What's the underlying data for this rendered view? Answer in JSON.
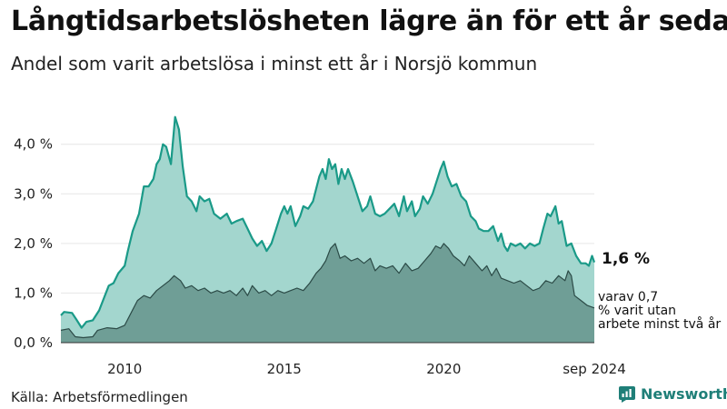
{
  "title": "Långtidsarbetslösheten lägre än för ett år sedan",
  "subtitle": "Andel som varit arbetslösa i minst ett år i Norsjö kommun",
  "source": "Källa: Arbetsförmedlingen",
  "brand": "Newsworthy",
  "colors": {
    "upper_fill": "#a3d6ce",
    "upper_line": "#1a9a88",
    "lower_fill": "#6f9e96",
    "lower_line": "#2b4a46",
    "brand": "#1f7f78"
  },
  "chart_data": {
    "type": "area",
    "ylim": [
      0,
      4.6
    ],
    "yticks": [
      "0,0 %",
      "1,0 %",
      "2,0 %",
      "3,0 %",
      "4,0 %"
    ],
    "xticks": [
      "2010",
      "2015",
      "2020",
      "sep 2024"
    ],
    "grid": true,
    "series": [
      {
        "end_label": "1,6 %",
        "points": [
          [
            2008.0,
            0.55
          ],
          [
            2008.1,
            0.62
          ],
          [
            2008.35,
            0.6
          ],
          [
            2008.5,
            0.45
          ],
          [
            2008.65,
            0.3
          ],
          [
            2008.8,
            0.42
          ],
          [
            2009.0,
            0.45
          ],
          [
            2009.2,
            0.65
          ],
          [
            2009.35,
            0.9
          ],
          [
            2009.5,
            1.15
          ],
          [
            2009.65,
            1.2
          ],
          [
            2009.8,
            1.4
          ],
          [
            2010.0,
            1.55
          ],
          [
            2010.1,
            1.85
          ],
          [
            2010.25,
            2.25
          ],
          [
            2010.45,
            2.6
          ],
          [
            2010.6,
            3.15
          ],
          [
            2010.75,
            3.15
          ],
          [
            2010.9,
            3.3
          ],
          [
            2011.0,
            3.6
          ],
          [
            2011.1,
            3.7
          ],
          [
            2011.2,
            4.0
          ],
          [
            2011.3,
            3.95
          ],
          [
            2011.45,
            3.6
          ],
          [
            2011.58,
            4.55
          ],
          [
            2011.7,
            4.3
          ],
          [
            2011.82,
            3.55
          ],
          [
            2011.95,
            2.95
          ],
          [
            2012.1,
            2.85
          ],
          [
            2012.25,
            2.65
          ],
          [
            2012.35,
            2.95
          ],
          [
            2012.5,
            2.85
          ],
          [
            2012.65,
            2.9
          ],
          [
            2012.8,
            2.6
          ],
          [
            2013.0,
            2.5
          ],
          [
            2013.2,
            2.6
          ],
          [
            2013.35,
            2.4
          ],
          [
            2013.5,
            2.45
          ],
          [
            2013.7,
            2.5
          ],
          [
            2013.85,
            2.3
          ],
          [
            2014.0,
            2.1
          ],
          [
            2014.15,
            1.95
          ],
          [
            2014.3,
            2.05
          ],
          [
            2014.45,
            1.85
          ],
          [
            2014.6,
            2.0
          ],
          [
            2014.75,
            2.3
          ],
          [
            2014.9,
            2.6
          ],
          [
            2015.0,
            2.75
          ],
          [
            2015.1,
            2.6
          ],
          [
            2015.2,
            2.75
          ],
          [
            2015.35,
            2.35
          ],
          [
            2015.5,
            2.55
          ],
          [
            2015.6,
            2.75
          ],
          [
            2015.75,
            2.7
          ],
          [
            2015.9,
            2.85
          ],
          [
            2016.0,
            3.1
          ],
          [
            2016.1,
            3.35
          ],
          [
            2016.2,
            3.5
          ],
          [
            2016.3,
            3.3
          ],
          [
            2016.4,
            3.7
          ],
          [
            2016.5,
            3.5
          ],
          [
            2016.6,
            3.6
          ],
          [
            2016.7,
            3.2
          ],
          [
            2016.8,
            3.5
          ],
          [
            2016.9,
            3.3
          ],
          [
            2017.0,
            3.5
          ],
          [
            2017.15,
            3.25
          ],
          [
            2017.3,
            2.95
          ],
          [
            2017.45,
            2.65
          ],
          [
            2017.6,
            2.75
          ],
          [
            2017.7,
            2.95
          ],
          [
            2017.85,
            2.6
          ],
          [
            2018.0,
            2.55
          ],
          [
            2018.15,
            2.6
          ],
          [
            2018.3,
            2.7
          ],
          [
            2018.45,
            2.8
          ],
          [
            2018.6,
            2.55
          ],
          [
            2018.75,
            2.95
          ],
          [
            2018.85,
            2.65
          ],
          [
            2019.0,
            2.85
          ],
          [
            2019.1,
            2.55
          ],
          [
            2019.25,
            2.7
          ],
          [
            2019.35,
            2.95
          ],
          [
            2019.5,
            2.8
          ],
          [
            2019.65,
            3.0
          ],
          [
            2019.75,
            3.2
          ],
          [
            2019.9,
            3.5
          ],
          [
            2020.0,
            3.65
          ],
          [
            2020.12,
            3.35
          ],
          [
            2020.25,
            3.15
          ],
          [
            2020.4,
            3.2
          ],
          [
            2020.55,
            2.95
          ],
          [
            2020.7,
            2.85
          ],
          [
            2020.85,
            2.55
          ],
          [
            2021.0,
            2.45
          ],
          [
            2021.1,
            2.3
          ],
          [
            2021.25,
            2.25
          ],
          [
            2021.4,
            2.25
          ],
          [
            2021.55,
            2.35
          ],
          [
            2021.7,
            2.05
          ],
          [
            2021.8,
            2.2
          ],
          [
            2021.9,
            1.95
          ],
          [
            2022.0,
            1.85
          ],
          [
            2022.1,
            2.0
          ],
          [
            2022.25,
            1.95
          ],
          [
            2022.4,
            2.0
          ],
          [
            2022.55,
            1.9
          ],
          [
            2022.7,
            2.0
          ],
          [
            2022.85,
            1.95
          ],
          [
            2023.0,
            2.0
          ],
          [
            2023.12,
            2.3
          ],
          [
            2023.25,
            2.6
          ],
          [
            2023.35,
            2.55
          ],
          [
            2023.5,
            2.75
          ],
          [
            2023.6,
            2.4
          ],
          [
            2023.7,
            2.45
          ],
          [
            2023.85,
            1.95
          ],
          [
            2024.0,
            2.0
          ],
          [
            2024.15,
            1.75
          ],
          [
            2024.3,
            1.6
          ],
          [
            2024.45,
            1.6
          ],
          [
            2024.55,
            1.55
          ],
          [
            2024.65,
            1.75
          ],
          [
            2024.72,
            1.62
          ]
        ]
      },
      {
        "end_label": "varav 0,7 % varit utan arbete minst två år",
        "points": [
          [
            2008.0,
            0.25
          ],
          [
            2008.25,
            0.28
          ],
          [
            2008.45,
            0.12
          ],
          [
            2008.7,
            0.1
          ],
          [
            2009.0,
            0.12
          ],
          [
            2009.15,
            0.25
          ],
          [
            2009.45,
            0.3
          ],
          [
            2009.75,
            0.28
          ],
          [
            2010.0,
            0.35
          ],
          [
            2010.2,
            0.6
          ],
          [
            2010.4,
            0.85
          ],
          [
            2010.6,
            0.95
          ],
          [
            2010.8,
            0.9
          ],
          [
            2011.0,
            1.05
          ],
          [
            2011.2,
            1.15
          ],
          [
            2011.4,
            1.25
          ],
          [
            2011.55,
            1.35
          ],
          [
            2011.75,
            1.25
          ],
          [
            2011.9,
            1.1
          ],
          [
            2012.1,
            1.15
          ],
          [
            2012.3,
            1.05
          ],
          [
            2012.5,
            1.1
          ],
          [
            2012.7,
            1.0
          ],
          [
            2012.9,
            1.05
          ],
          [
            2013.1,
            1.0
          ],
          [
            2013.3,
            1.05
          ],
          [
            2013.5,
            0.95
          ],
          [
            2013.7,
            1.1
          ],
          [
            2013.85,
            0.95
          ],
          [
            2014.0,
            1.15
          ],
          [
            2014.2,
            1.0
          ],
          [
            2014.4,
            1.05
          ],
          [
            2014.6,
            0.95
          ],
          [
            2014.8,
            1.05
          ],
          [
            2015.0,
            1.0
          ],
          [
            2015.2,
            1.05
          ],
          [
            2015.4,
            1.1
          ],
          [
            2015.6,
            1.05
          ],
          [
            2015.8,
            1.2
          ],
          [
            2016.0,
            1.4
          ],
          [
            2016.15,
            1.5
          ],
          [
            2016.3,
            1.65
          ],
          [
            2016.45,
            1.9
          ],
          [
            2016.6,
            2.0
          ],
          [
            2016.75,
            1.7
          ],
          [
            2016.9,
            1.75
          ],
          [
            2017.1,
            1.65
          ],
          [
            2017.3,
            1.7
          ],
          [
            2017.5,
            1.6
          ],
          [
            2017.7,
            1.7
          ],
          [
            2017.85,
            1.45
          ],
          [
            2018.0,
            1.55
          ],
          [
            2018.2,
            1.5
          ],
          [
            2018.4,
            1.55
          ],
          [
            2018.6,
            1.4
          ],
          [
            2018.8,
            1.6
          ],
          [
            2019.0,
            1.45
          ],
          [
            2019.2,
            1.5
          ],
          [
            2019.4,
            1.65
          ],
          [
            2019.6,
            1.8
          ],
          [
            2019.75,
            1.95
          ],
          [
            2019.9,
            1.9
          ],
          [
            2020.0,
            2.0
          ],
          [
            2020.15,
            1.9
          ],
          [
            2020.3,
            1.75
          ],
          [
            2020.5,
            1.65
          ],
          [
            2020.65,
            1.55
          ],
          [
            2020.8,
            1.75
          ],
          [
            2021.0,
            1.6
          ],
          [
            2021.2,
            1.45
          ],
          [
            2021.35,
            1.55
          ],
          [
            2021.5,
            1.35
          ],
          [
            2021.65,
            1.5
          ],
          [
            2021.8,
            1.3
          ],
          [
            2022.0,
            1.25
          ],
          [
            2022.2,
            1.2
          ],
          [
            2022.4,
            1.25
          ],
          [
            2022.6,
            1.15
          ],
          [
            2022.8,
            1.05
          ],
          [
            2023.0,
            1.1
          ],
          [
            2023.2,
            1.25
          ],
          [
            2023.4,
            1.2
          ],
          [
            2023.6,
            1.35
          ],
          [
            2023.8,
            1.25
          ],
          [
            2023.9,
            1.45
          ],
          [
            2024.0,
            1.35
          ],
          [
            2024.1,
            0.95
          ],
          [
            2024.3,
            0.85
          ],
          [
            2024.5,
            0.75
          ],
          [
            2024.72,
            0.7
          ]
        ]
      }
    ]
  }
}
